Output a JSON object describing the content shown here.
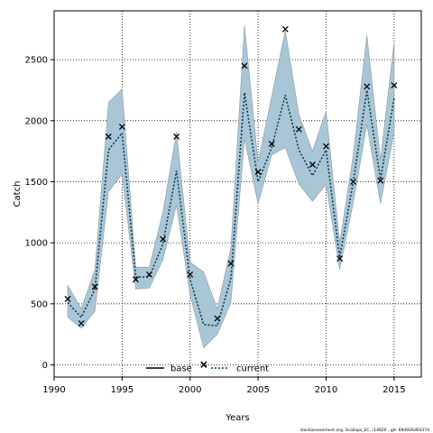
{
  "chart_data": {
    "type": "line",
    "xlabel": "Years",
    "ylabel": "Catch",
    "xlim": [
      1990,
      2017
    ],
    "ylim": [
      -100,
      2900
    ],
    "xticks": [
      1990,
      1995,
      2000,
      2005,
      2010,
      2015
    ],
    "yticks": [
      0,
      500,
      1000,
      1500,
      2000,
      2500
    ],
    "grid": true,
    "legend_placement": "bottom-center",
    "series": [
      {
        "name": "base",
        "style": "solid",
        "color": "#000000",
        "x": [],
        "y": []
      },
      {
        "name": "current",
        "style": "dotted",
        "color": "#0b3a4a",
        "x": [
          1991,
          1992,
          1993,
          1994,
          1995,
          1996,
          1997,
          1998,
          1999,
          2000,
          2001,
          2002,
          2003,
          2004,
          2005,
          2006,
          2007,
          2008,
          2009,
          2010,
          2011,
          2012,
          2013,
          2014,
          2015
        ],
        "y": [
          510,
          390,
          620,
          1760,
          1900,
          720,
          720,
          990,
          1590,
          700,
          330,
          320,
          710,
          2230,
          1500,
          1780,
          2210,
          1760,
          1550,
          1760,
          880,
          1500,
          2250,
          1520,
          2180
        ],
        "band_lower": [
          390,
          300,
          440,
          1420,
          1560,
          620,
          630,
          860,
          1310,
          570,
          140,
          250,
          510,
          1850,
          1320,
          1720,
          1780,
          1480,
          1340,
          1480,
          780,
          1330,
          1970,
          1320,
          1900
        ],
        "band_upper": [
          650,
          460,
          780,
          2150,
          2260,
          800,
          800,
          1250,
          1910,
          840,
          760,
          460,
          960,
          2780,
          1660,
          2200,
          2740,
          2050,
          1750,
          2080,
          1000,
          1720,
          2700,
          1680,
          2640
        ]
      }
    ],
    "observed": {
      "marker": "x",
      "x": [
        1991,
        1992,
        1993,
        1994,
        1995,
        1996,
        1997,
        1998,
        1999,
        2000,
        2001,
        2002,
        2003,
        2004,
        2005,
        2006,
        2007,
        2008,
        2009,
        2010,
        2011,
        2012,
        2013,
        2014,
        2015
      ],
      "y": [
        540,
        340,
        640,
        1870,
        1950,
        700,
        740,
        1030,
        1870,
        740,
        0,
        380,
        830,
        2450,
        1580,
        1810,
        2750,
        1930,
        1640,
        1790,
        870,
        1500,
        2280,
        1510,
        2290
      ]
    },
    "colors": {
      "band": "#a9c6d6",
      "band_edge": "#8f9aa3"
    },
    "footer": "stockassessment.org, Scallops_EC, r14820 , git: 69d926d0437d"
  }
}
